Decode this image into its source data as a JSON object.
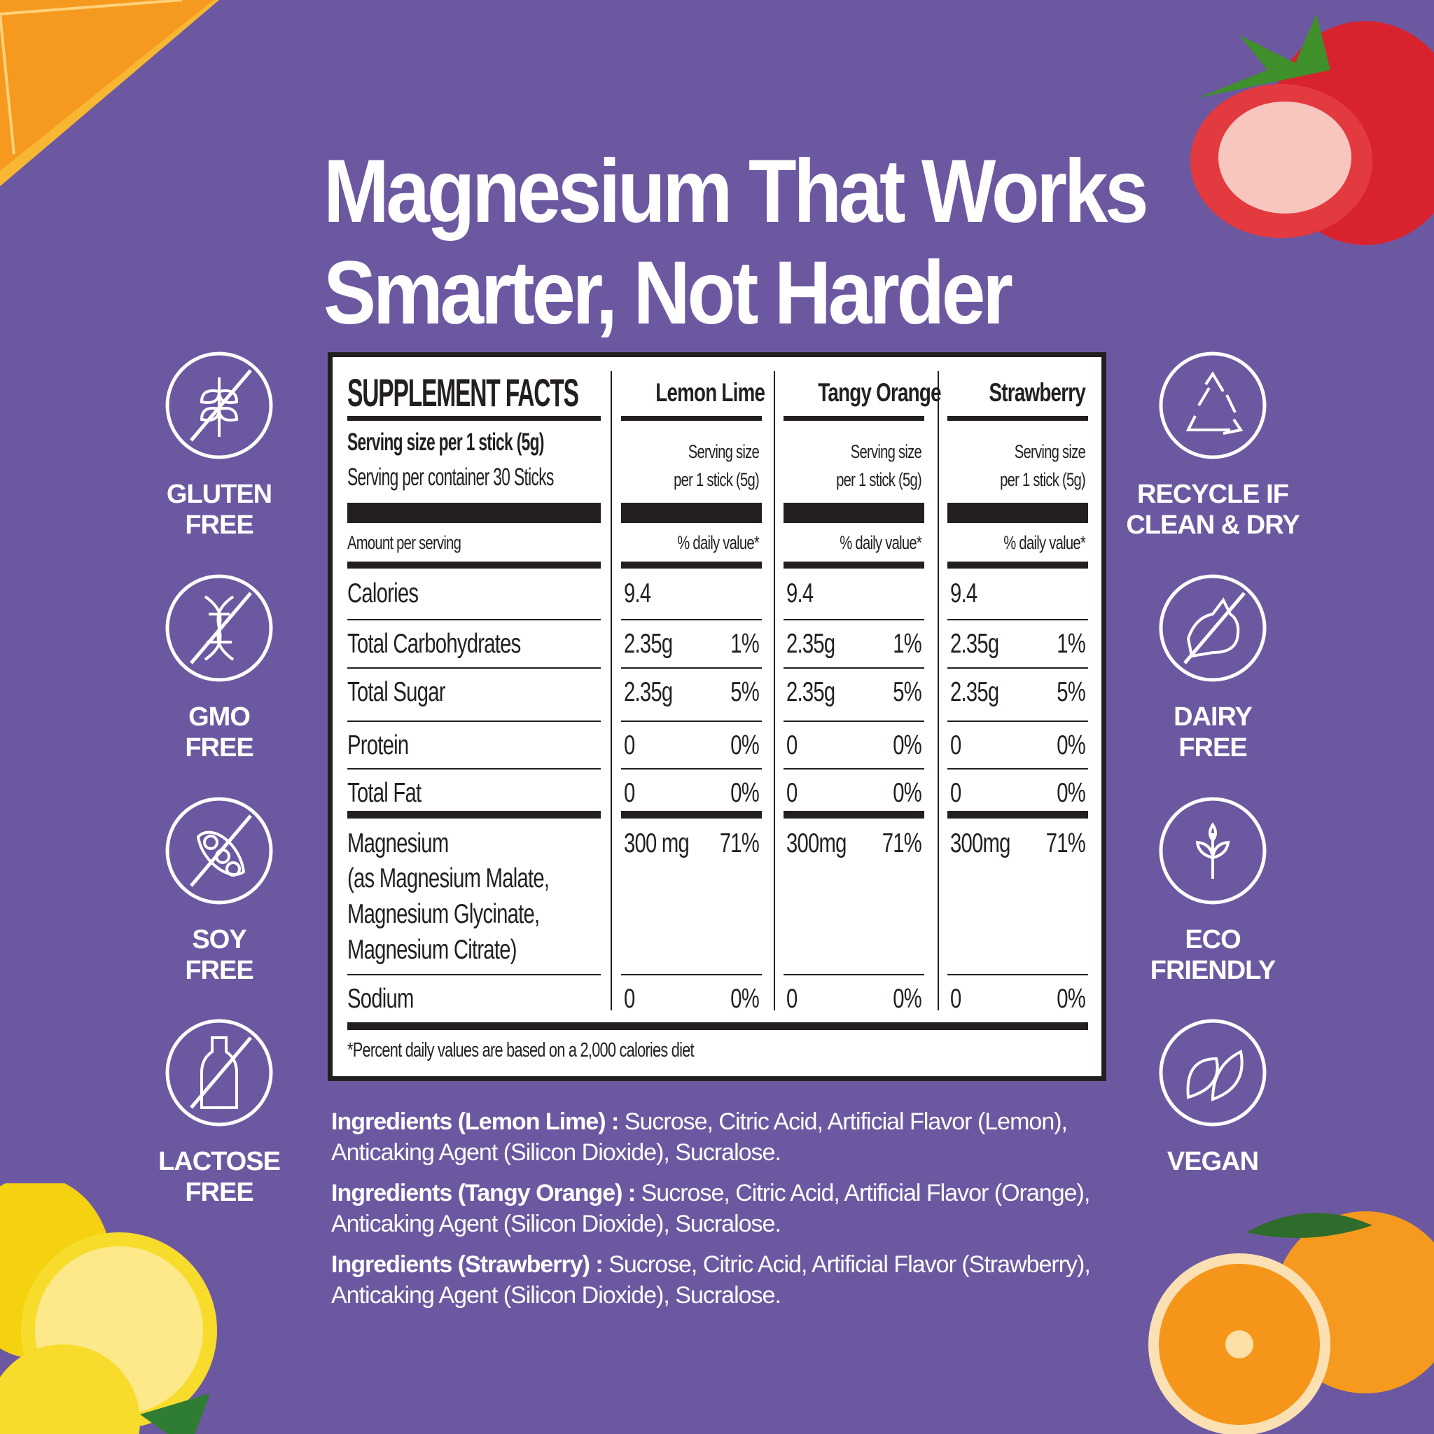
{
  "title": {
    "line1": "Magnesium That Works",
    "line2": "Smarter, Not Harder"
  },
  "facts": {
    "heading": "SUPPLEMENT FACTS",
    "flavors": [
      "Lemon Lime",
      "Tangy Orange",
      "Strawberry"
    ],
    "serving_size": "Serving size per 1 stick (5g)",
    "servings_per_container": "Serving per container 30 Sticks",
    "col_serving_line1": "Serving size",
    "col_serving_line2": "per 1 stick (5g)",
    "amount_label": "Amount per serving",
    "dv_label": "% daily value*",
    "rows": [
      {
        "label": "Calories",
        "values": [
          [
            "9.4",
            ""
          ],
          [
            "9.4",
            ""
          ],
          [
            "9.4",
            ""
          ]
        ]
      },
      {
        "label": "Total Carbohydrates",
        "values": [
          [
            "2.35g",
            "1%"
          ],
          [
            "2.35g",
            "1%"
          ],
          [
            "2.35g",
            "1%"
          ]
        ]
      },
      {
        "label": "Total Sugar",
        "values": [
          [
            "2.35g",
            "5%"
          ],
          [
            "2.35g",
            "5%"
          ],
          [
            "2.35g",
            "5%"
          ]
        ]
      },
      {
        "label": "Protein",
        "values": [
          [
            "0",
            "0%"
          ],
          [
            "0",
            "0%"
          ],
          [
            "0",
            "0%"
          ]
        ]
      },
      {
        "label": "Total Fat",
        "values": [
          [
            "0",
            "0%"
          ],
          [
            "0",
            "0%"
          ],
          [
            "0",
            "0%"
          ]
        ]
      },
      {
        "label": "Magnesium",
        "sublines": [
          "(as Magnesium Malate,",
          "Magnesium Glycinate,",
          "Magnesium Citrate)"
        ],
        "values": [
          [
            "300 mg",
            "71%"
          ],
          [
            "300mg",
            "71%"
          ],
          [
            "300mg",
            "71%"
          ]
        ]
      },
      {
        "label": "Sodium",
        "values": [
          [
            "0",
            "0%"
          ],
          [
            "0",
            "0%"
          ],
          [
            "0",
            "0%"
          ]
        ]
      }
    ],
    "footnote": "*Percent daily values are based on a 2,000 calories diet"
  },
  "badges_left": [
    {
      "icon": "gluten-free-icon",
      "line1": "GLUTEN",
      "line2": "FREE"
    },
    {
      "icon": "gmo-free-icon",
      "line1": "GMO",
      "line2": "FREE"
    },
    {
      "icon": "soy-free-icon",
      "line1": "SOY",
      "line2": "FREE"
    },
    {
      "icon": "lactose-free-icon",
      "line1": "LACTOSE",
      "line2": "FREE"
    }
  ],
  "badges_right": [
    {
      "icon": "recycle-icon",
      "line1": "RECYCLE IF",
      "line2": "CLEAN & DRY"
    },
    {
      "icon": "dairy-free-icon",
      "line1": "DAIRY",
      "line2": "FREE"
    },
    {
      "icon": "eco-friendly-icon",
      "line1": "ECO",
      "line2": "FRIENDLY"
    },
    {
      "icon": "vegan-leaf-icon",
      "line1": "VEGAN",
      "line2": ""
    }
  ],
  "ingredients": [
    {
      "label": "Ingredients (Lemon Lime) :",
      "text": " Sucrose, Citric Acid, Artificial Flavor (Lemon), Anticaking Agent (Silicon Dioxide), Sucralose."
    },
    {
      "label": "Ingredients (Tangy Orange) :",
      "text": " Sucrose, Citric Acid, Artificial Flavor (Orange), Anticaking Agent (Silicon Dioxide), Sucralose."
    },
    {
      "label": "Ingredients (Strawberry) :",
      "text": " Sucrose, Citric Acid, Artificial Flavor (Strawberry), Anticaking Agent (Silicon Dioxide), Sucralose."
    }
  ],
  "colors": {
    "background": "#6C58A1",
    "text_dark": "#231f20",
    "white": "#ffffff"
  }
}
